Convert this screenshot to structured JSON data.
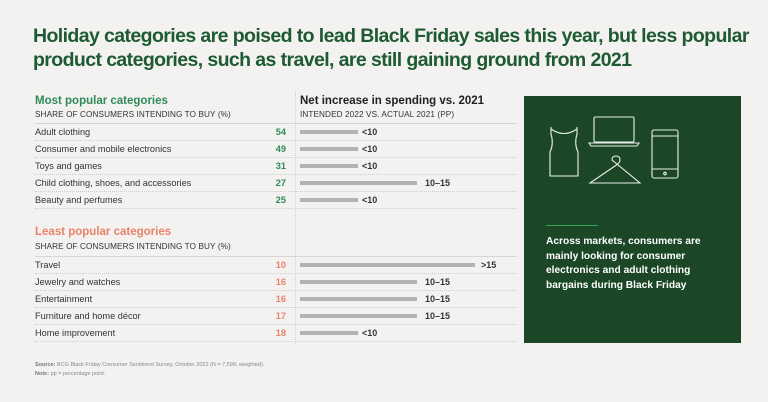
{
  "title": "Holiday categories are poised to lead Black Friday sales this year, but less popular product categories, such as travel, are still gaining ground from 2021",
  "colors": {
    "title": "#1e5a32",
    "most": "#2e8b57",
    "least": "#e8826a",
    "bar": "#b3b3b3",
    "panel": "#1b4727"
  },
  "chart_data": {
    "type": "table",
    "right_header": "Net increase in spending vs. 2021",
    "right_subheader": "INTENDED 2022 VS. ACTUAL 2021 (PP)",
    "bar_levels": [
      "<10",
      "10–15",
      ">15"
    ],
    "groups": [
      {
        "title": "Most popular categories",
        "subtitle": "SHARE OF CONSUMERS INTENDING TO BUY (%)",
        "rows": [
          {
            "category": "Adult clothing",
            "share": 54,
            "increase": "<10"
          },
          {
            "category": "Consumer and mobile electronics",
            "share": 49,
            "increase": "<10"
          },
          {
            "category": "Toys and games",
            "share": 31,
            "increase": "<10"
          },
          {
            "category": "Child clothing, shoes, and accessories",
            "share": 27,
            "increase": "10–15"
          },
          {
            "category": "Beauty and perfumes",
            "share": 25,
            "increase": "<10"
          }
        ]
      },
      {
        "title": "Least popular categories",
        "subtitle": "SHARE OF CONSUMERS INTENDING TO BUY (%)",
        "rows": [
          {
            "category": "Travel",
            "share": 10,
            "increase": ">15"
          },
          {
            "category": "Jewelry and watches",
            "share": 16,
            "increase": "10–15"
          },
          {
            "category": "Entertainment",
            "share": 16,
            "increase": "10–15"
          },
          {
            "category": "Furniture and home décor",
            "share": 17,
            "increase": "10–15"
          },
          {
            "category": "Home improvement",
            "share": 18,
            "increase": "<10"
          }
        ]
      }
    ]
  },
  "panel": {
    "icons": [
      "dress-icon",
      "laptop-icon",
      "hanger-icon",
      "smartphone-icon"
    ],
    "text": "Across markets, consumers are mainly looking for consumer electronics and adult clothing bargains during Black Friday"
  },
  "footer": {
    "source_label": "Source:",
    "source": " BCG Black Friday Consumer Sentiment Survey, October 2022 (N = 7,598; weighted).",
    "note_label": "Note:",
    "note": " pp = percentage point."
  }
}
